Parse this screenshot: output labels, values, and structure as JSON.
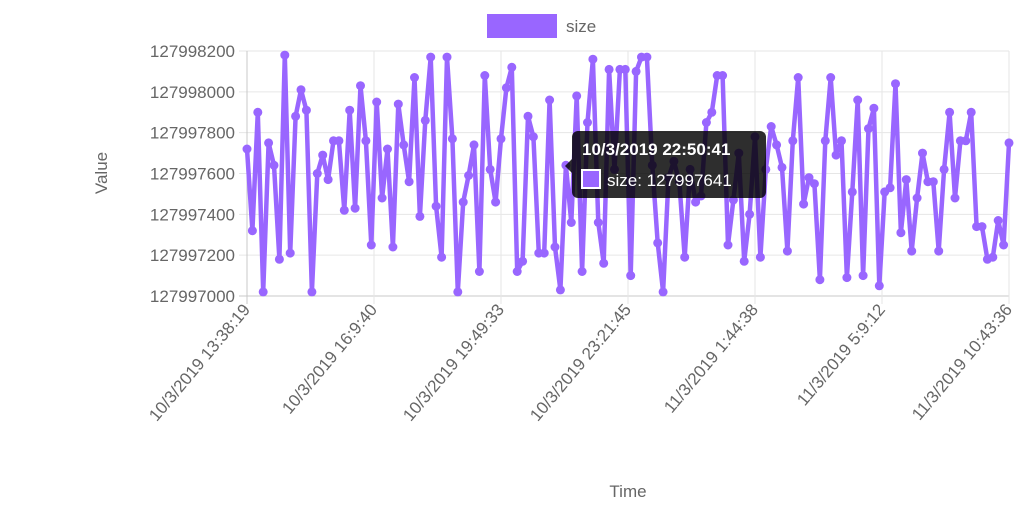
{
  "chart_data": {
    "type": "line",
    "title": "",
    "xlabel": "Time",
    "ylabel": "Value",
    "ylim": [
      127997000,
      127998200
    ],
    "yticks": [
      "127998200",
      "127998000",
      "127997800",
      "127997600",
      "127997400",
      "127997200",
      "127997000"
    ],
    "xticks": [
      "10/3/2019 13:38:19",
      "10/3/2019 16:9:40",
      "10/3/2019 19:49:33",
      "10/3/2019 23:21:45",
      "11/3/2019 1:44:38",
      "11/3/2019 5:9:12",
      "11/3/2019 10:43:36"
    ],
    "grid": true,
    "legend_position": "top",
    "series": [
      {
        "name": "size",
        "color": "#9966ff",
        "values": [
          127997720,
          127997320,
          127997900,
          127997020,
          127997750,
          127997640,
          127997180,
          127998180,
          127997210,
          127997880,
          127998010,
          127997910,
          127997020,
          127997600,
          127997690,
          127997570,
          127997760,
          127997760,
          127997420,
          127997910,
          127997430,
          127998030,
          127997760,
          127997250,
          127997950,
          127997480,
          127997720,
          127997240,
          127997940,
          127997740,
          127997560,
          127998070,
          127997390,
          127997860,
          127998170,
          127997440,
          127997190,
          127998170,
          127997770,
          127997020,
          127997460,
          127997590,
          127997740,
          127997120,
          127998080,
          127997620,
          127997460,
          127997770,
          127998020,
          127998120,
          127997120,
          127997170,
          127997880,
          127997780,
          127997210,
          127997210,
          127997960,
          127997240,
          127997030,
          127997640,
          127997360,
          127997980,
          127997120,
          127997850,
          127998160,
          127997360,
          127997160,
          127998110,
          127997620,
          127998110,
          127998110,
          127997100,
          127998100,
          127998170,
          127998170,
          127997640,
          127997260,
          127997020,
          127997580,
          127997660,
          127997560,
          127997190,
          127997620,
          127997460,
          127997490,
          127997850,
          127997900,
          127998080,
          127998080,
          127997250,
          127997470,
          127997700,
          127997170,
          127997400,
          127997780,
          127997190,
          127997620,
          127997830,
          127997740,
          127997630,
          127997220,
          127997760,
          127998070,
          127997450,
          127997580,
          127997550,
          127997080,
          127997760,
          127998070,
          127997690,
          127997760,
          127997090,
          127997510,
          127997960,
          127997100,
          127997820,
          127997920,
          127997050,
          127997510,
          127997530,
          127998040,
          127997310,
          127997570,
          127997220,
          127997480,
          127997700,
          127997560,
          127997560,
          127997220,
          127997620,
          127997900,
          127997480,
          127997760,
          127997760,
          127997900,
          127997340,
          127997340,
          127997180,
          127997190,
          127997370,
          127997250,
          127997750
        ]
      }
    ],
    "tooltip": {
      "title": "10/3/2019 22:50:41",
      "body": "size: 127997641",
      "point_index": 59
    }
  }
}
